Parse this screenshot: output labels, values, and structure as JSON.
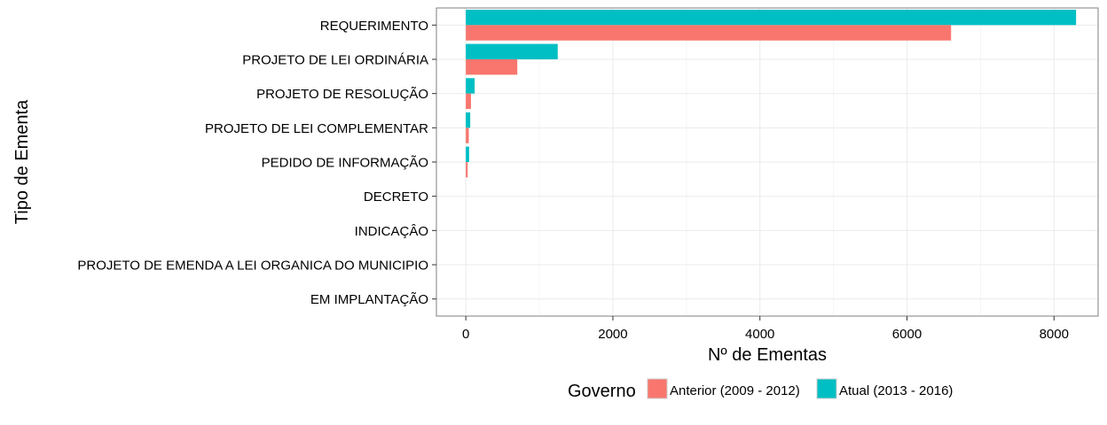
{
  "chart_data": {
    "type": "bar",
    "orientation": "horizontal",
    "xlabel": "Nº de Ementas",
    "ylabel": "Tipo de Ementa",
    "xlim": [
      -400,
      8600
    ],
    "xticks": [
      "0",
      "2000",
      "4000",
      "6000",
      "8000"
    ],
    "categories": [
      "REQUERIMENTO",
      "PROJETO DE LEI ORDINÁRIA",
      "PROJETO DE RESOLUÇÃO",
      "PROJETO DE LEI COMPLEMENTAR",
      "PEDIDO DE INFORMAÇÃO",
      "DECRETO",
      "INDICAÇÂO",
      "PROJETO DE EMENDA A LEI ORGANICA DO MUNICIPIO",
      "EM IMPLANTAÇÃO"
    ],
    "series": [
      {
        "name": "Atual (2013 - 2016)",
        "color": "#00BFC4",
        "values": [
          8300,
          1250,
          120,
          60,
          45,
          0,
          0,
          0,
          0
        ]
      },
      {
        "name": "Anterior (2009 - 2012)",
        "color": "#F8766D",
        "values": [
          6600,
          700,
          70,
          40,
          25,
          0,
          0,
          0,
          0
        ]
      }
    ],
    "grid": true,
    "legend": {
      "title": "Governo",
      "position": "bottom",
      "entries": [
        "Anterior (2009 - 2012)",
        "Atual (2013 - 2016)"
      ]
    }
  }
}
